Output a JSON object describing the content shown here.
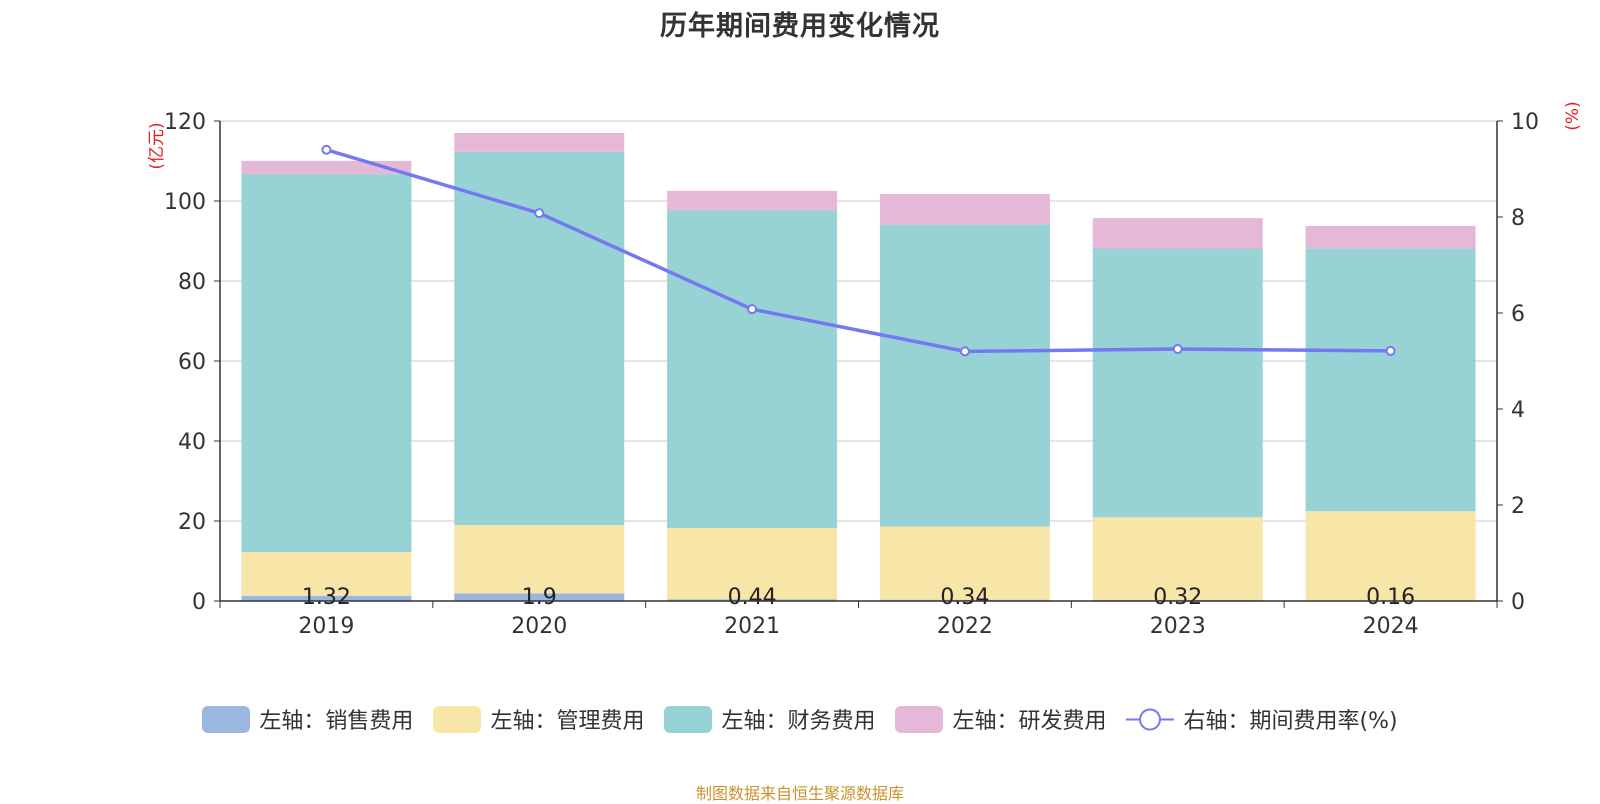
{
  "chart_data": {
    "type": "bar",
    "stacked": true,
    "title": "历年期间费用变化情况",
    "categories": [
      "2019",
      "2020",
      "2021",
      "2022",
      "2023",
      "2024"
    ],
    "series": [
      {
        "name": "左轴：销售费用",
        "axis": "left",
        "type": "bar",
        "color": "#9bb7e0",
        "values": [
          1.32,
          1.9,
          0.44,
          0.34,
          0.32,
          0.16
        ],
        "labels": [
          "1.32",
          "1.9",
          "0.44",
          "0.34",
          "0.32",
          "0.16"
        ]
      },
      {
        "name": "左轴：管理费用",
        "axis": "left",
        "type": "bar",
        "color": "#f8e6a8",
        "values": [
          10.9,
          17.1,
          17.8,
          18.3,
          20.6,
          22.3
        ]
      },
      {
        "name": "左轴：财务费用",
        "axis": "left",
        "type": "bar",
        "color": "#97d3d4",
        "values": [
          94.5,
          93.3,
          79.4,
          75.5,
          67.2,
          65.7
        ]
      },
      {
        "name": "左轴：研发费用",
        "axis": "left",
        "type": "bar",
        "color": "#e6b8d8",
        "values": [
          3.3,
          4.7,
          4.9,
          7.6,
          7.6,
          5.6
        ]
      },
      {
        "name": "右轴：期间费用率(%)",
        "axis": "right",
        "type": "line",
        "color": "#7479f2",
        "values": [
          9.4,
          8.08,
          6.08,
          5.2,
          5.25,
          5.21
        ]
      }
    ],
    "y_left": {
      "label": "(亿元)",
      "min": 0,
      "max": 120,
      "ticks": [
        0,
        20,
        40,
        60,
        80,
        100,
        120
      ]
    },
    "y_right": {
      "label": "(%)",
      "min": 0,
      "max": 10,
      "ticks": [
        0,
        2,
        4,
        6,
        8,
        10
      ]
    },
    "grid": true,
    "legend_position": "bottom"
  },
  "footer": "制图数据来自恒生聚源数据库"
}
